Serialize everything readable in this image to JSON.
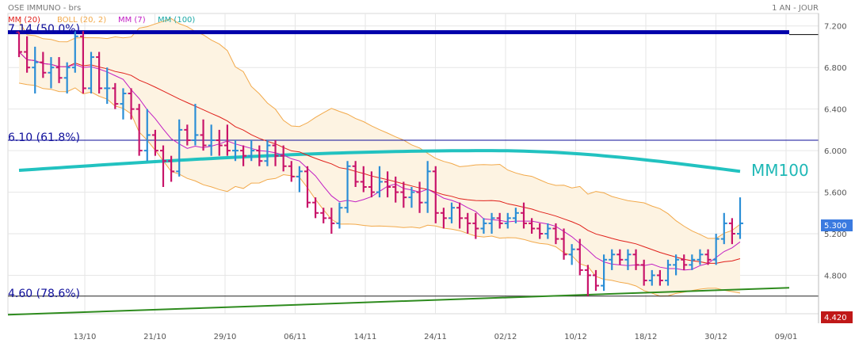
{
  "header": {
    "instrument": "OSE IMMUNO - brs",
    "period": "1 AN - JOUR"
  },
  "legend": [
    {
      "label": "MM (20)",
      "color": "#e0201b"
    },
    {
      "label": "BOLL (20, 2)",
      "color": "#f2a94a"
    },
    {
      "label": "MM (7)",
      "color": "#c21fc4"
    },
    {
      "label": "MM (100)",
      "color": "#22c2c0"
    }
  ],
  "colors": {
    "up_bar": "#2b8ed6",
    "down_bar": "#c8146a",
    "mm100": "#22c2c0",
    "mm20": "#e0201b",
    "mm7": "#c21fc4",
    "boll": "#f2a94a",
    "boll_fill": "#fdf3e2",
    "fib_line": "#0d0d9a",
    "fib_strong": "#0000aa",
    "trend_line": "#2e8b1e",
    "last_price_bg": "#3a7ae0",
    "low_price_bg": "#c01818"
  },
  "annotations": {
    "mm100_label": "MM100"
  },
  "chart_data": {
    "type": "ohlc",
    "ylim": [
      4.43,
      7.32
    ],
    "y_ticks": [
      "7.200",
      "6.800",
      "6.400",
      "6.000",
      "5.600",
      "5.200",
      "4.800"
    ],
    "x_ticks": [
      "13/10",
      "21/10",
      "29/10",
      "06/11",
      "14/11",
      "24/11",
      "02/12",
      "10/12",
      "18/12",
      "30/12",
      "09/01"
    ],
    "grid": true,
    "last_price": "5.300",
    "low_marker": "4.420",
    "fibonacci": [
      {
        "label": "7.14  (50.0%)",
        "value": 7.14
      },
      {
        "label": "6.10  (61.8%)",
        "value": 6.1
      },
      {
        "label": "4.60  (78.6%)",
        "value": 4.6
      }
    ],
    "mm100_line": {
      "start": 5.81,
      "peak": 6.0,
      "end": 5.8
    },
    "support_line": {
      "start": 4.42,
      "end": 4.68
    },
    "bars": [
      [
        7.14,
        7.14,
        6.9,
        6.95
      ],
      [
        6.95,
        7.1,
        6.75,
        6.8
      ],
      [
        6.8,
        7.0,
        6.55,
        6.85
      ],
      [
        6.85,
        6.95,
        6.7,
        6.75
      ],
      [
        6.75,
        6.9,
        6.6,
        6.8
      ],
      [
        6.8,
        6.9,
        6.65,
        6.7
      ],
      [
        6.7,
        6.85,
        6.55,
        6.8
      ],
      [
        6.8,
        7.15,
        6.75,
        7.1
      ],
      [
        7.1,
        7.15,
        6.55,
        6.6
      ],
      [
        6.6,
        6.95,
        6.55,
        6.9
      ],
      [
        6.9,
        6.95,
        6.55,
        6.6
      ],
      [
        6.6,
        6.8,
        6.45,
        6.6
      ],
      [
        6.6,
        6.65,
        6.4,
        6.45
      ],
      [
        6.45,
        6.6,
        6.3,
        6.55
      ],
      [
        6.55,
        6.6,
        6.3,
        6.4
      ],
      [
        6.4,
        6.45,
        5.95,
        6.0
      ],
      [
        6.0,
        6.4,
        5.9,
        6.15
      ],
      [
        6.15,
        6.2,
        5.95,
        6.0
      ],
      [
        6.0,
        6.05,
        5.65,
        5.9
      ],
      [
        5.9,
        5.95,
        5.7,
        5.8
      ],
      [
        5.8,
        6.3,
        5.75,
        6.2
      ],
      [
        6.2,
        6.25,
        6.05,
        6.1
      ],
      [
        6.1,
        6.45,
        6.05,
        6.15
      ],
      [
        6.15,
        6.3,
        6.0,
        6.05
      ],
      [
        6.05,
        6.25,
        5.95,
        6.1
      ],
      [
        6.1,
        6.2,
        5.95,
        6.05
      ],
      [
        6.05,
        6.25,
        5.95,
        6.0
      ],
      [
        6.0,
        6.1,
        5.9,
        6.0
      ],
      [
        6.0,
        6.05,
        5.85,
        5.95
      ],
      [
        5.95,
        6.1,
        5.9,
        6.0
      ],
      [
        6.0,
        6.05,
        5.85,
        5.9
      ],
      [
        5.9,
        6.1,
        5.85,
        6.05
      ],
      [
        6.05,
        6.1,
        5.85,
        5.95
      ],
      [
        5.95,
        6.05,
        5.8,
        5.85
      ],
      [
        5.85,
        5.9,
        5.7,
        5.75
      ],
      [
        5.75,
        5.85,
        5.6,
        5.8
      ],
      [
        5.8,
        5.85,
        5.45,
        5.5
      ],
      [
        5.5,
        5.55,
        5.35,
        5.4
      ],
      [
        5.4,
        5.45,
        5.3,
        5.35
      ],
      [
        5.35,
        5.45,
        5.2,
        5.3
      ],
      [
        5.3,
        5.5,
        5.25,
        5.45
      ],
      [
        5.45,
        5.9,
        5.4,
        5.85
      ],
      [
        5.85,
        5.9,
        5.65,
        5.7
      ],
      [
        5.7,
        5.85,
        5.6,
        5.65
      ],
      [
        5.65,
        5.8,
        5.55,
        5.6
      ],
      [
        5.6,
        5.85,
        5.55,
        5.7
      ],
      [
        5.7,
        5.8,
        5.55,
        5.65
      ],
      [
        5.65,
        5.75,
        5.5,
        5.6
      ],
      [
        5.6,
        5.7,
        5.45,
        5.55
      ],
      [
        5.55,
        5.65,
        5.45,
        5.6
      ],
      [
        5.6,
        5.7,
        5.4,
        5.5
      ],
      [
        5.5,
        5.9,
        5.4,
        5.8
      ],
      [
        5.8,
        5.85,
        5.3,
        5.4
      ],
      [
        5.4,
        5.45,
        5.25,
        5.35
      ],
      [
        5.35,
        5.5,
        5.3,
        5.45
      ],
      [
        5.45,
        5.5,
        5.25,
        5.35
      ],
      [
        5.35,
        5.4,
        5.2,
        5.3
      ],
      [
        5.3,
        5.4,
        5.15,
        5.25
      ],
      [
        5.25,
        5.35,
        5.2,
        5.3
      ],
      [
        5.3,
        5.4,
        5.2,
        5.35
      ],
      [
        5.35,
        5.4,
        5.25,
        5.3
      ],
      [
        5.3,
        5.4,
        5.25,
        5.35
      ],
      [
        5.35,
        5.45,
        5.3,
        5.4
      ],
      [
        5.4,
        5.5,
        5.25,
        5.3
      ],
      [
        5.3,
        5.35,
        5.2,
        5.25
      ],
      [
        5.25,
        5.3,
        5.15,
        5.2
      ],
      [
        5.2,
        5.3,
        5.15,
        5.25
      ],
      [
        5.25,
        5.3,
        5.1,
        5.15
      ],
      [
        5.15,
        5.25,
        4.95,
        5.0
      ],
      [
        5.0,
        5.1,
        4.9,
        5.05
      ],
      [
        5.05,
        5.15,
        4.8,
        4.85
      ],
      [
        4.85,
        4.9,
        4.6,
        4.8
      ],
      [
        4.8,
        4.85,
        4.65,
        4.7
      ],
      [
        4.7,
        5.0,
        4.65,
        4.95
      ],
      [
        4.95,
        5.05,
        4.85,
        5.0
      ],
      [
        5.0,
        5.05,
        4.9,
        4.95
      ],
      [
        4.95,
        5.05,
        4.85,
        5.0
      ],
      [
        5.0,
        5.05,
        4.85,
        4.9
      ],
      [
        4.9,
        4.95,
        4.7,
        4.75
      ],
      [
        4.75,
        4.85,
        4.7,
        4.8
      ],
      [
        4.8,
        4.85,
        4.7,
        4.75
      ],
      [
        4.75,
        4.95,
        4.7,
        4.9
      ],
      [
        4.9,
        5.0,
        4.8,
        4.95
      ],
      [
        4.95,
        5.0,
        4.85,
        4.9
      ],
      [
        4.9,
        5.0,
        4.85,
        4.95
      ],
      [
        4.95,
        5.05,
        4.9,
        5.0
      ],
      [
        5.0,
        5.05,
        4.9,
        4.95
      ],
      [
        4.95,
        5.2,
        4.9,
        5.15
      ],
      [
        5.15,
        5.4,
        5.1,
        5.3
      ],
      [
        5.3,
        5.35,
        5.1,
        5.2
      ],
      [
        5.2,
        5.55,
        5.15,
        5.3
      ]
    ]
  }
}
